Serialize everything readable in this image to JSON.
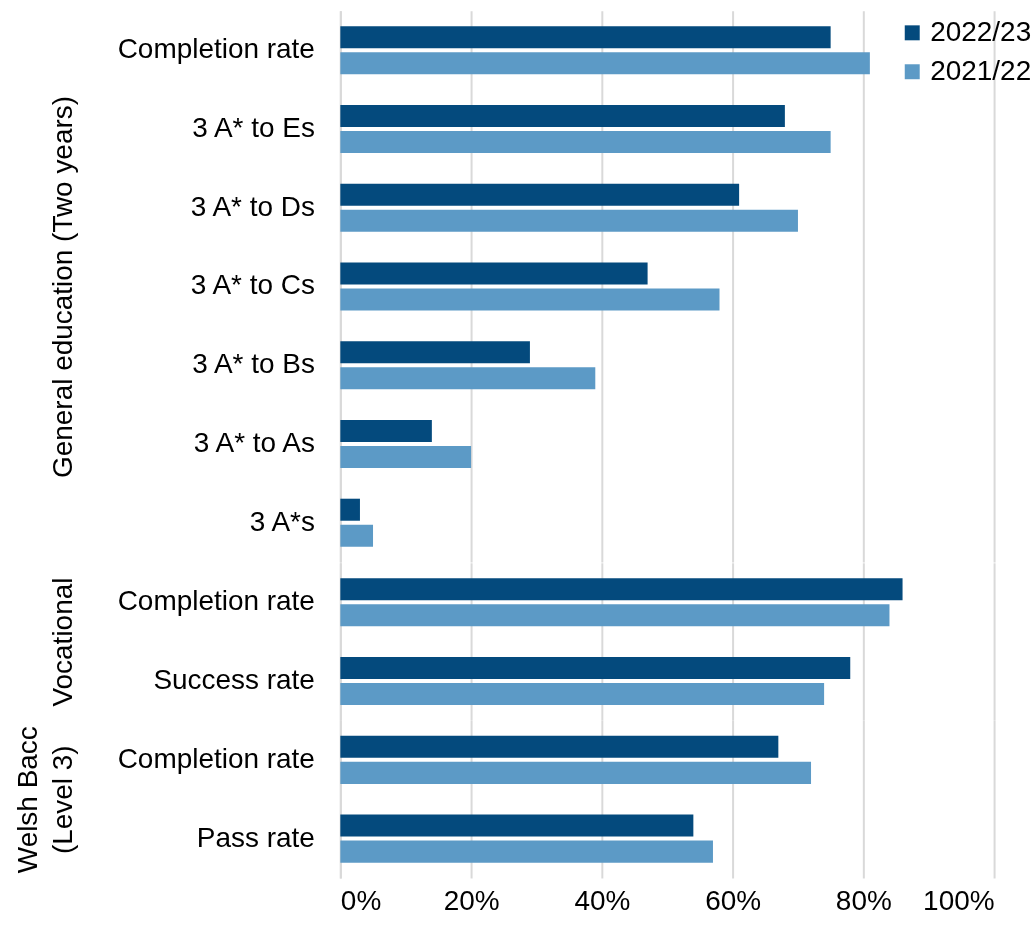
{
  "chart_data": [
    {
      "type": "bar",
      "orientation": "horizontal",
      "ylabel": "General education (Two years)",
      "categories": [
        "Completion rate",
        "3 A* to Es",
        "3 A* to Ds",
        "3 A* to Cs",
        "3 A* to Bs",
        "3 A* to As",
        "3 A*s"
      ],
      "series": [
        {
          "name": "2022/23",
          "color": "#044a7d",
          "values": [
            75,
            68,
            61,
            47,
            29,
            14,
            3
          ]
        },
        {
          "name": "2021/22",
          "color": "#5c9ac6",
          "values": [
            81,
            75,
            70,
            58,
            39,
            20,
            5
          ]
        }
      ],
      "xlim": [
        0,
        100
      ],
      "xticks": [
        0,
        20,
        40,
        60,
        80,
        100
      ],
      "grid": "x",
      "legend": "top right",
      "tick_labels": "y"
    },
    {
      "type": "bar",
      "orientation": "horizontal",
      "ylabel": "Vocational",
      "categories": [
        "Completion rate",
        "Success rate"
      ],
      "series": [
        {
          "color": "#044a7d",
          "values": [
            86,
            78
          ]
        },
        {
          "color": "#5c9ac6",
          "values": [
            84,
            74
          ]
        }
      ],
      "xlim": [
        0,
        100
      ],
      "xticks": [
        0,
        20,
        40,
        60,
        80,
        100
      ],
      "grid": "x",
      "tick_labels": "y"
    },
    {
      "type": "bar",
      "orientation": "horizontal",
      "ylabel": "Welsh Bacc (Level 3)",
      "categories": [
        "Completion rate",
        "Pass rate"
      ],
      "series": [
        {
          "color": "#044a7d",
          "values": [
            67,
            54
          ]
        },
        {
          "color": "#5c9ac6",
          "values": [
            72,
            57
          ]
        }
      ],
      "xlim": [
        0,
        100
      ],
      "xticks": [
        {
          "value": 0,
          "label": "0%"
        },
        {
          "value": 20,
          "label": "20%"
        },
        {
          "value": 40,
          "label": "40%"
        },
        {
          "value": 60,
          "label": "60%"
        },
        {
          "value": 80,
          "label": "80%"
        },
        {
          "value": 100,
          "label": "100%"
        }
      ],
      "grid": "x"
    }
  ]
}
